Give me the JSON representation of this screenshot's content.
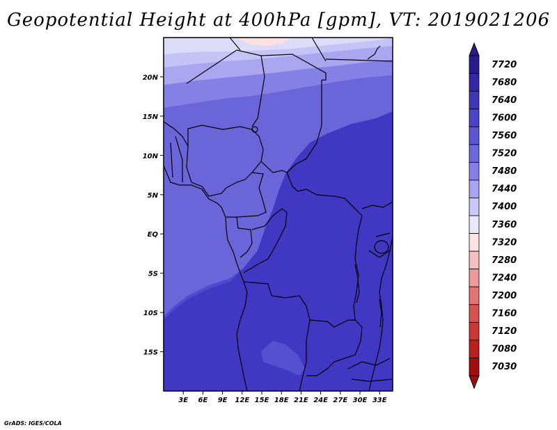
{
  "title": "Geopotential Height at 400hPa [gpm], VT: 2019021206",
  "credit": "GrADS: IGES/COLA",
  "map": {
    "lon_range": [
      0,
      35
    ],
    "lat_range": [
      -20,
      25
    ],
    "lon_ticks": [
      "3E",
      "6E",
      "9E",
      "12E",
      "15E",
      "18E",
      "21E",
      "24E",
      "27E",
      "30E",
      "33E"
    ],
    "lat_ticks": [
      "20N",
      "15N",
      "10N",
      "5N",
      "EQ",
      "5S",
      "10S",
      "15S"
    ]
  },
  "colorbar": {
    "labels": [
      "7720",
      "7680",
      "7640",
      "7600",
      "7560",
      "7520",
      "7480",
      "7440",
      "7400",
      "7360",
      "7320",
      "7280",
      "7240",
      "7200",
      "7160",
      "7120",
      "7080",
      "7030"
    ],
    "colors": [
      "#2a1a8c",
      "#3528a6",
      "#3f36bb",
      "#4a44c6",
      "#5b56d0",
      "#6c68d9",
      "#8580e6",
      "#a8a4f1",
      "#cac8f8",
      "#eae9fc",
      "#fde4e4",
      "#f6c0c0",
      "#ee9a9a",
      "#e37474",
      "#d85252",
      "#cc3636",
      "#bb2020",
      "#a00f0f"
    ]
  },
  "colors": {
    "band_7400": "#dcdcfa",
    "band_7440": "#c6c4f6",
    "band_7480": "#aaa6f0",
    "band_7520": "#8580e6",
    "band_7560": "#6a66d9",
    "band_7600": "#4f4ad0",
    "band_7640": "#4038c2",
    "band_7360": "#fde0e0"
  }
}
